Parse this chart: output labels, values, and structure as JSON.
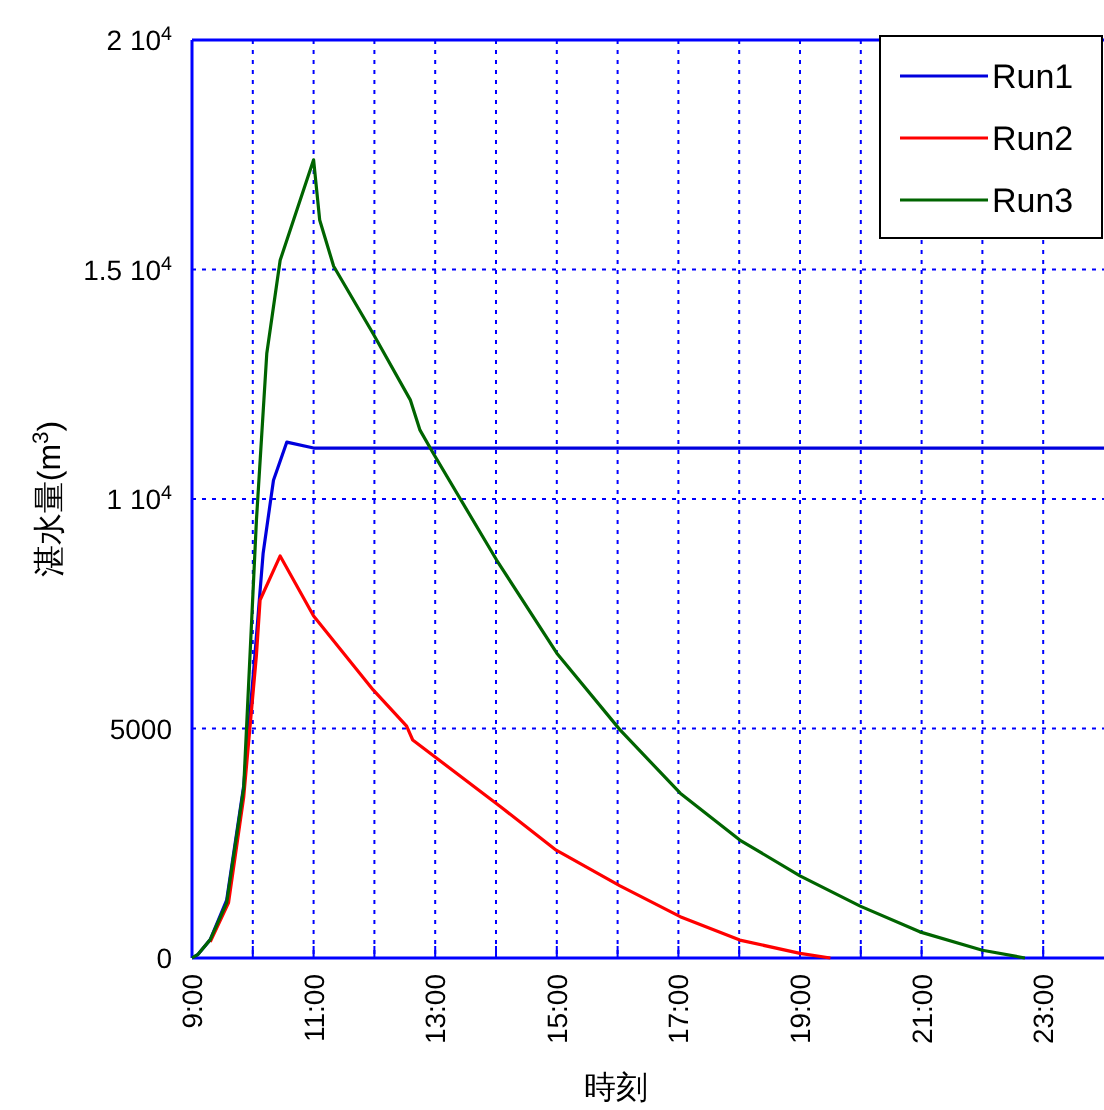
{
  "chart_data": {
    "type": "line",
    "xlabel": "時刻",
    "ylabel": "湛水量(m$^{3}$)",
    "xlim": [
      9,
      24
    ],
    "ylim": [
      0,
      20000
    ],
    "xticks": [
      {
        "value": 9,
        "label": "9:00"
      },
      {
        "value": 10,
        "label": null
      },
      {
        "value": 11,
        "label": "11:00"
      },
      {
        "value": 12,
        "label": null
      },
      {
        "value": 13,
        "label": "13:00"
      },
      {
        "value": 14,
        "label": null
      },
      {
        "value": 15,
        "label": "15:00"
      },
      {
        "value": 16,
        "label": null
      },
      {
        "value": 17,
        "label": "17:00"
      },
      {
        "value": 18,
        "label": null
      },
      {
        "value": 19,
        "label": "19:00"
      },
      {
        "value": 20,
        "label": null
      },
      {
        "value": 21,
        "label": "21:00"
      },
      {
        "value": 22,
        "label": null
      },
      {
        "value": 23,
        "label": "23:00"
      }
    ],
    "yticks": [
      0,
      5000,
      {
        "value": 10000,
        "label": "1 10$^{4}$"
      },
      {
        "value": 15000,
        "label": "1.5 10$^{4}$"
      },
      {
        "value": 20000,
        "label": "2 10$^{4}$"
      }
    ],
    "grid": true,
    "legend": "top right",
    "line_style": "solid",
    "marker": "none",
    "series": [
      {
        "name": "Run1",
        "color": "#0000dd",
        "x": [
          9.0,
          9.1,
          9.3,
          9.57,
          9.85,
          10.01,
          10.17,
          10.34,
          10.56,
          11.0,
          24.0
        ],
        "values": [
          0,
          80,
          400,
          1260,
          3750,
          6200,
          8820,
          10410,
          11240,
          11110,
          11110
        ]
      },
      {
        "name": "Run2",
        "color": "#ff0000",
        "x": [
          9.3,
          9.6,
          9.85,
          10.06,
          10.12,
          10.45,
          11.0,
          11.98,
          12.53,
          12.63,
          14.07,
          14.99,
          16.04,
          17.03,
          18.01,
          19.0,
          19.5
        ],
        "values": [
          350,
          1200,
          3500,
          6600,
          7800,
          8760,
          7450,
          5840,
          5050,
          4750,
          3300,
          2350,
          1570,
          900,
          390,
          100,
          0
        ]
      },
      {
        "name": "Run3",
        "color": "#006400",
        "x": [
          9.0,
          9.1,
          9.3,
          9.57,
          9.85,
          10.06,
          10.23,
          10.45,
          10.67,
          11.0,
          11.1,
          11.33,
          11.98,
          12.59,
          12.75,
          12.97,
          14.01,
          15.0,
          16.04,
          17.03,
          18.01,
          19.0,
          19.99,
          20.97,
          22.0,
          22.7
        ],
        "values": [
          0,
          80,
          400,
          1200,
          3700,
          9540,
          13170,
          15200,
          16080,
          17390,
          16080,
          15070,
          13600,
          12160,
          11500,
          10990,
          8670,
          6640,
          4970,
          3590,
          2570,
          1790,
          1130,
          570,
          170,
          0
        ]
      }
    ]
  }
}
